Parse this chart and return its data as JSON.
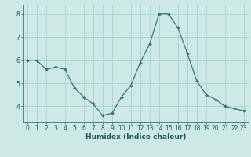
{
  "x": [
    0,
    1,
    2,
    3,
    4,
    5,
    6,
    7,
    8,
    9,
    10,
    11,
    12,
    13,
    14,
    15,
    16,
    17,
    18,
    19,
    20,
    21,
    22,
    23
  ],
  "y": [
    6.0,
    6.0,
    5.6,
    5.7,
    5.6,
    4.8,
    4.4,
    4.1,
    3.6,
    3.7,
    4.4,
    4.9,
    5.9,
    6.7,
    8.0,
    8.0,
    7.4,
    6.3,
    5.1,
    4.5,
    4.3,
    4.0,
    3.9,
    3.8
  ],
  "line_color": "#2e7d6e",
  "marker": "D",
  "marker_size": 2.0,
  "bg_color": "#cde8e5",
  "grid_color": "#b0d0cc",
  "axis_color": "#2e7d6e",
  "xlabel": "Humidex (Indice chaleur)",
  "ylim": [
    3.3,
    8.4
  ],
  "xlim": [
    -0.5,
    23.5
  ],
  "yticks": [
    4,
    5,
    6,
    7,
    8
  ],
  "xticks": [
    0,
    1,
    2,
    3,
    4,
    5,
    6,
    7,
    8,
    9,
    10,
    11,
    12,
    13,
    14,
    15,
    16,
    17,
    18,
    19,
    20,
    21,
    22,
    23
  ],
  "font_color": "#1a5f54",
  "xlabel_fontsize": 6.5,
  "tick_fontsize": 5.5
}
